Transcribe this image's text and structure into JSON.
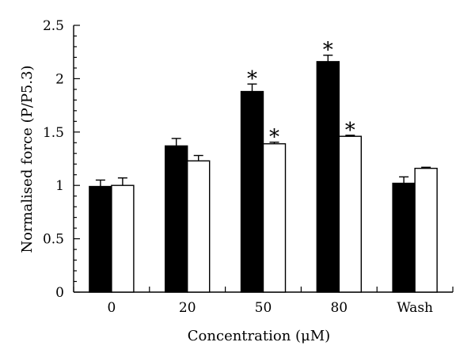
{
  "chart_data": {
    "type": "bar",
    "title": "",
    "xlabel": "Concentration (μM)",
    "ylabel": "Normalised force (P/P5.3)",
    "ylim": [
      0,
      2.5
    ],
    "yticks": [
      0,
      0.5,
      1,
      1.5,
      2,
      2.5
    ],
    "ytick_labels": [
      "0",
      "0.5",
      "1",
      "1.5",
      "2",
      "2.5"
    ],
    "categories": [
      "0",
      "20",
      "50",
      "80",
      "Wash"
    ],
    "grid": false,
    "legend": "none",
    "series": [
      {
        "color": "#000000",
        "values": [
          0.99,
          1.37,
          1.88,
          2.16,
          1.02
        ],
        "errors": [
          0.06,
          0.07,
          0.07,
          0.06,
          0.06
        ],
        "significant": [
          false,
          false,
          true,
          true,
          false
        ]
      },
      {
        "color": "#ffffff",
        "values": [
          1.0,
          1.23,
          1.39,
          1.46,
          1.16
        ],
        "errors": [
          0.07,
          0.05,
          0.015,
          0.01,
          0.01
        ],
        "significant": [
          false,
          false,
          true,
          true,
          false
        ]
      }
    ],
    "significance_marker": "*"
  }
}
